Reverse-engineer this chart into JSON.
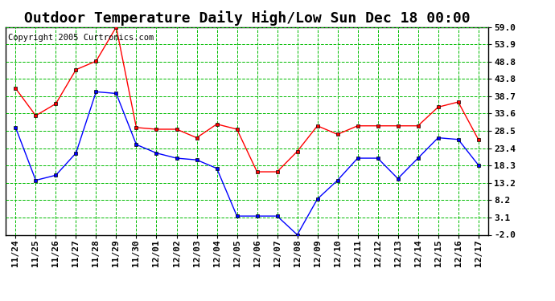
{
  "title": "Outdoor Temperature Daily High/Low Sun Dec 18 00:00",
  "copyright": "Copyright 2005 Curtronics.com",
  "labels": [
    "11/24",
    "11/25",
    "11/26",
    "11/27",
    "11/28",
    "11/29",
    "11/30",
    "12/01",
    "12/02",
    "12/03",
    "12/04",
    "12/05",
    "12/06",
    "12/07",
    "12/08",
    "12/09",
    "12/10",
    "12/11",
    "12/12",
    "12/13",
    "12/14",
    "12/15",
    "12/16",
    "12/17"
  ],
  "high": [
    41.0,
    33.0,
    36.5,
    46.5,
    49.0,
    59.0,
    29.5,
    29.0,
    29.0,
    26.5,
    30.5,
    29.0,
    16.5,
    16.5,
    22.5,
    30.0,
    27.5,
    30.0,
    30.0,
    30.0,
    30.0,
    35.5,
    37.0,
    26.0
  ],
  "low": [
    29.5,
    14.0,
    15.5,
    22.0,
    40.0,
    39.5,
    24.5,
    22.0,
    20.5,
    20.0,
    17.5,
    3.5,
    3.5,
    3.5,
    -2.0,
    8.5,
    14.0,
    20.5,
    20.5,
    14.5,
    20.5,
    26.5,
    26.0,
    18.5
  ],
  "yticks": [
    -2.0,
    3.1,
    8.2,
    13.2,
    18.3,
    23.4,
    28.5,
    33.6,
    38.7,
    43.8,
    48.8,
    53.9,
    59.0
  ],
  "ymin": -2.0,
  "ymax": 59.0,
  "high_color": "#ff0000",
  "low_color": "#0000ff",
  "bg_color": "#ffffff",
  "grid_color": "#00bb00",
  "title_fontsize": 13,
  "tick_fontsize": 8,
  "copyright_fontsize": 7.5
}
